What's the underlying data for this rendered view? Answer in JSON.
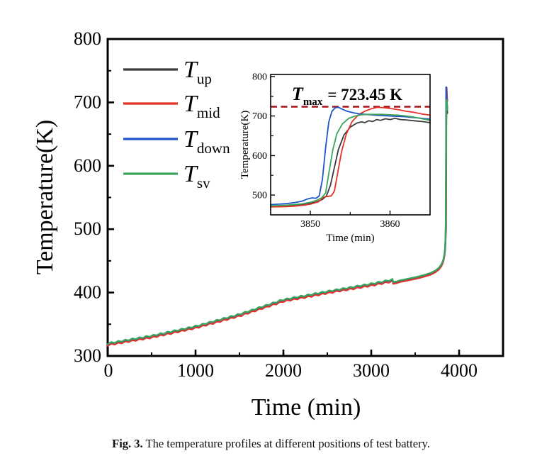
{
  "figure": {
    "caption_label": "Fig. 3.",
    "caption_text": " The temperature profiles at different positions of test battery."
  },
  "chart_data": {
    "type": "line",
    "title": "",
    "xlabel": "Time (min)",
    "ylabel": "Temperature(K)",
    "xlim": [
      0,
      4500
    ],
    "ylim": [
      300,
      800
    ],
    "x_ticks": [
      0,
      1000,
      2000,
      3000,
      4000
    ],
    "x_minor_ticks": [
      500,
      1500,
      2500,
      3500
    ],
    "y_ticks": [
      300,
      400,
      500,
      600,
      700,
      800
    ],
    "y_minor_ticks": [
      350,
      450,
      550,
      650,
      750
    ],
    "grid": false,
    "legend_position": "upper-left-inside",
    "colors": {
      "up": "#3c3c3c",
      "mid": "#e53128",
      "down": "#1f53c9",
      "sv": "#3ba55c",
      "dashed_ref": "#a31313",
      "annotation": "#e8231e",
      "frame": "#000000"
    },
    "legend": [
      {
        "main": "T",
        "sub": "up"
      },
      {
        "main": "T",
        "sub": "mid"
      },
      {
        "main": "T",
        "sub": "down"
      },
      {
        "main": "T",
        "sub": "sv"
      }
    ],
    "main_base_points": [
      [
        0,
        318
      ],
      [
        40,
        321.2
      ],
      [
        80,
        319.9
      ],
      [
        120,
        323.1
      ],
      [
        160,
        321.8
      ],
      [
        200,
        325
      ],
      [
        240,
        323.8
      ],
      [
        280,
        326.9
      ],
      [
        320,
        325.7
      ],
      [
        360,
        328.8
      ],
      [
        400,
        327.6
      ],
      [
        440,
        330.8
      ],
      [
        480,
        329.5
      ],
      [
        520,
        332.8
      ],
      [
        560,
        331.8
      ],
      [
        600,
        335.2
      ],
      [
        640,
        334.2
      ],
      [
        680,
        337.6
      ],
      [
        720,
        336.6
      ],
      [
        760,
        340
      ],
      [
        800,
        339
      ],
      [
        840,
        342.4
      ],
      [
        880,
        341.4
      ],
      [
        920,
        344.8
      ],
      [
        960,
        343.8
      ],
      [
        1000,
        347.2
      ],
      [
        1040,
        346.5
      ],
      [
        1080,
        350.2
      ],
      [
        1120,
        349.6
      ],
      [
        1160,
        353.3
      ],
      [
        1200,
        352.6
      ],
      [
        1240,
        356.3
      ],
      [
        1280,
        355.6
      ],
      [
        1320,
        359.4
      ],
      [
        1360,
        358.7
      ],
      [
        1400,
        362.4
      ],
      [
        1440,
        361.7
      ],
      [
        1480,
        365.4
      ],
      [
        1520,
        364.9
      ],
      [
        1560,
        369
      ],
      [
        1600,
        368.6
      ],
      [
        1640,
        372.6
      ],
      [
        1680,
        372.3
      ],
      [
        1720,
        376.3
      ],
      [
        1760,
        376
      ],
      [
        1800,
        380
      ],
      [
        1840,
        379.6
      ],
      [
        1880,
        383.7
      ],
      [
        1920,
        383.3
      ],
      [
        1960,
        387.4
      ],
      [
        2000,
        387
      ],
      [
        2040,
        390.2
      ],
      [
        2080,
        389.1
      ],
      [
        2120,
        392.3
      ],
      [
        2160,
        391.2
      ],
      [
        2200,
        394.4
      ],
      [
        2240,
        393.2
      ],
      [
        2280,
        396.5
      ],
      [
        2320,
        395.3
      ],
      [
        2360,
        398.6
      ],
      [
        2400,
        397.4
      ],
      [
        2440,
        400.6
      ],
      [
        2480,
        399.5
      ],
      [
        2520,
        402.7
      ],
      [
        2560,
        401.4
      ],
      [
        2600,
        404.6
      ],
      [
        2640,
        403.4
      ],
      [
        2680,
        406.5
      ],
      [
        2720,
        405.3
      ],
      [
        2760,
        408.4
      ],
      [
        2800,
        407.2
      ],
      [
        2840,
        410.4
      ],
      [
        2880,
        409.1
      ],
      [
        2920,
        412.3
      ],
      [
        2960,
        411
      ],
      [
        3000,
        414.2
      ],
      [
        3040,
        413.1
      ],
      [
        3080,
        416.4
      ],
      [
        3120,
        415.3
      ],
      [
        3160,
        418.6
      ],
      [
        3200,
        417.5
      ],
      [
        3240,
        420.9
      ],
      [
        3250,
        415.8
      ],
      [
        3290,
        417
      ],
      [
        3330,
        418.8
      ],
      [
        3380,
        420
      ],
      [
        3440,
        421.8
      ],
      [
        3500,
        423.5
      ],
      [
        3560,
        425.5
      ],
      [
        3620,
        427.8
      ],
      [
        3680,
        430.5
      ],
      [
        3730,
        434
      ],
      [
        3770,
        438.5
      ],
      [
        3800,
        444
      ],
      [
        3820,
        451
      ],
      [
        3832,
        459
      ],
      [
        3838,
        465
      ]
    ],
    "series": [
      {
        "name": "T_up",
        "color": "#3c3c3c",
        "offset": 0,
        "tail": [
          [
            3841,
            470
          ],
          [
            3845,
            484
          ],
          [
            3848,
            510
          ],
          [
            3850,
            555
          ],
          [
            3851.5,
            610
          ],
          [
            3853,
            655
          ],
          [
            3854.5,
            676
          ],
          [
            3856,
            686
          ],
          [
            3858,
            692
          ],
          [
            3860,
            694
          ],
          [
            3863,
            688
          ],
          [
            3866,
            683
          ]
        ]
      },
      {
        "name": "T_mid",
        "color": "#e53128",
        "offset": -2,
        "tail": [
          [
            3841,
            468
          ],
          [
            3845,
            480
          ],
          [
            3849,
            494
          ],
          [
            3852,
            500
          ],
          [
            3853,
            545
          ],
          [
            3854,
            630
          ],
          [
            3855.5,
            695
          ],
          [
            3857,
            717
          ],
          [
            3858.3,
            723
          ],
          [
            3860,
            719
          ],
          [
            3863,
            708
          ],
          [
            3866,
            702
          ]
        ]
      },
      {
        "name": "T_down",
        "color": "#1f53c9",
        "offset": 0.4,
        "tail": [
          [
            3841,
            472
          ],
          [
            3844,
            483
          ],
          [
            3847,
            492
          ],
          [
            3849.5,
            505
          ],
          [
            3851,
            570
          ],
          [
            3852,
            670
          ],
          [
            3852.8,
            716
          ],
          [
            3853.3,
            724
          ],
          [
            3854.5,
            714
          ],
          [
            3856,
            707
          ],
          [
            3858,
            702
          ],
          [
            3861,
            699
          ],
          [
            3866,
            692
          ]
        ]
      },
      {
        "name": "T_sv",
        "color": "#3ba55c",
        "offset": 0.7,
        "tail": [
          [
            3841,
            471
          ],
          [
            3845,
            486
          ],
          [
            3848,
            515
          ],
          [
            3850,
            560
          ],
          [
            3851.8,
            625
          ],
          [
            3853,
            665
          ],
          [
            3854.5,
            693
          ],
          [
            3856,
            701
          ],
          [
            3858,
            704
          ],
          [
            3861,
            702
          ],
          [
            3864,
            695
          ],
          [
            3866,
            688
          ]
        ]
      }
    ],
    "inset": {
      "xlabel": "Time (min)",
      "ylabel": "Temperature(K)",
      "xlim": [
        3845,
        3865
      ],
      "ylim": [
        450,
        805
      ],
      "x_ticks": [
        3850,
        3860
      ],
      "x_minor_ticks": [
        3855
      ],
      "y_ticks": [
        500,
        600,
        700,
        800
      ],
      "y_minor_ticks": [
        550,
        650,
        750
      ],
      "tmax_value": 723.45,
      "annotation": {
        "main": "T",
        "sub": "max",
        "rest": "= 723.45 K"
      },
      "series": [
        {
          "name": "T_up",
          "color": "#3c3c3c",
          "points": [
            [
              3845,
              472
            ],
            [
              3846,
              472.5
            ],
            [
              3847,
              473
            ],
            [
              3848,
              474
            ],
            [
              3849,
              476
            ],
            [
              3850,
              479
            ],
            [
              3850.8,
              483
            ],
            [
              3851.5,
              489
            ],
            [
              3852,
              498
            ],
            [
              3852.5,
              525
            ],
            [
              3853,
              570
            ],
            [
              3853.5,
              615
            ],
            [
              3854.2,
              652
            ],
            [
              3855,
              672
            ],
            [
              3855.8,
              682
            ],
            [
              3856.4,
              685
            ],
            [
              3856.8,
              683
            ],
            [
              3857.3,
              688
            ],
            [
              3857.8,
              686
            ],
            [
              3858.3,
              691
            ],
            [
              3858.8,
              689
            ],
            [
              3859.4,
              693
            ],
            [
              3860,
              691
            ],
            [
              3860.6,
              694
            ],
            [
              3861.3,
              691
            ],
            [
              3862,
              690
            ],
            [
              3863,
              688
            ],
            [
              3864,
              686
            ],
            [
              3865,
              683
            ]
          ]
        },
        {
          "name": "T_mid",
          "color": "#e53128",
          "points": [
            [
              3845,
              470
            ],
            [
              3846,
              470.5
            ],
            [
              3847,
              471
            ],
            [
              3848,
              472
            ],
            [
              3849,
              474
            ],
            [
              3850,
              477
            ],
            [
              3851,
              483
            ],
            [
              3851.6,
              494
            ],
            [
              3852,
              496
            ],
            [
              3852.6,
              498
            ],
            [
              3853,
              510
            ],
            [
              3853.4,
              555
            ],
            [
              3853.9,
              610
            ],
            [
              3854.5,
              655
            ],
            [
              3855.2,
              685
            ],
            [
              3856,
              703
            ],
            [
              3856.8,
              712
            ],
            [
              3857.6,
              718
            ],
            [
              3858.4,
              722
            ],
            [
              3859.2,
              721
            ],
            [
              3860,
              719
            ],
            [
              3861,
              716
            ],
            [
              3862,
              712
            ],
            [
              3863,
              709
            ],
            [
              3864,
              705
            ],
            [
              3865,
              702
            ]
          ]
        },
        {
          "name": "T_down",
          "color": "#1f53c9",
          "points": [
            [
              3845,
              476
            ],
            [
              3846,
              477
            ],
            [
              3847,
              478.5
            ],
            [
              3848,
              481
            ],
            [
              3849,
              485
            ],
            [
              3849.6,
              490
            ],
            [
              3850.2,
              493
            ],
            [
              3850.7,
              492
            ],
            [
              3851.1,
              498
            ],
            [
              3851.5,
              540
            ],
            [
              3851.9,
              620
            ],
            [
              3852.3,
              685
            ],
            [
              3852.7,
              712
            ],
            [
              3853.1,
              721
            ],
            [
              3853.5,
              722
            ],
            [
              3854,
              717
            ],
            [
              3854.6,
              712
            ],
            [
              3855.4,
              708
            ],
            [
              3856.2,
              705
            ],
            [
              3857,
              704
            ],
            [
              3858,
              702
            ],
            [
              3859,
              701
            ],
            [
              3860,
              700
            ],
            [
              3861,
              699
            ],
            [
              3862,
              698
            ],
            [
              3863,
              696
            ],
            [
              3864,
              694
            ],
            [
              3865,
              692
            ]
          ]
        },
        {
          "name": "T_sv",
          "color": "#3ba55c",
          "points": [
            [
              3845,
              473
            ],
            [
              3846,
              473.5
            ],
            [
              3847,
              474.5
            ],
            [
              3848,
              476
            ],
            [
              3849,
              478
            ],
            [
              3850,
              482
            ],
            [
              3850.8,
              487
            ],
            [
              3851.4,
              493
            ],
            [
              3851.9,
              505
            ],
            [
              3852.3,
              555
            ],
            [
              3852.8,
              615
            ],
            [
              3853.3,
              655
            ],
            [
              3854,
              680
            ],
            [
              3854.8,
              694
            ],
            [
              3855.6,
              700
            ],
            [
              3856.4,
              703
            ],
            [
              3857.2,
              704
            ],
            [
              3858,
              704
            ],
            [
              3859,
              704
            ],
            [
              3860,
              703
            ],
            [
              3861,
              702
            ],
            [
              3862,
              700
            ],
            [
              3863,
              697
            ],
            [
              3864,
              693
            ],
            [
              3865,
              689
            ]
          ]
        }
      ]
    }
  }
}
